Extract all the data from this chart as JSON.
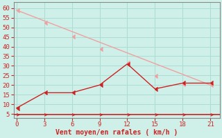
{
  "xlabel": "Vent moyen/en rafales ( km/h )",
  "bg_color": "#cef0e8",
  "grid_color": "#aaddd5",
  "x_ticks": [
    0,
    3,
    6,
    9,
    12,
    15,
    18,
    21
  ],
  "y_ticks": [
    5,
    10,
    15,
    20,
    25,
    30,
    35,
    40,
    45,
    50,
    55,
    60
  ],
  "xlim": [
    -0.3,
    22
  ],
  "ylim": [
    3,
    63
  ],
  "line1_x": [
    0,
    21
  ],
  "line1_y": [
    59,
    20
  ],
  "line1_color": "#f0a0a0",
  "line2_x": [
    0,
    3,
    6,
    9,
    12,
    15,
    18,
    21
  ],
  "line2_y": [
    8,
    16,
    16,
    20,
    31,
    18,
    21,
    21
  ],
  "line2_color": "#cc2222",
  "marker_color_1": "#f08080",
  "marker_color_2": "#cc3333",
  "tick_color": "#cc2222",
  "label_color": "#cc2222",
  "axis_color": "#888888",
  "redline_y": 4.5,
  "marker1_x": [
    0,
    3,
    6,
    9,
    12,
    15,
    18,
    21
  ],
  "marker1_y": [
    59,
    52.4,
    45.3,
    38.7,
    31.6,
    24.7,
    20.3,
    20
  ],
  "marker2_x": [
    0,
    3,
    6,
    9,
    12,
    15,
    18,
    21
  ],
  "marker2_y": [
    8,
    16,
    16,
    20,
    31,
    18,
    21,
    21
  ]
}
